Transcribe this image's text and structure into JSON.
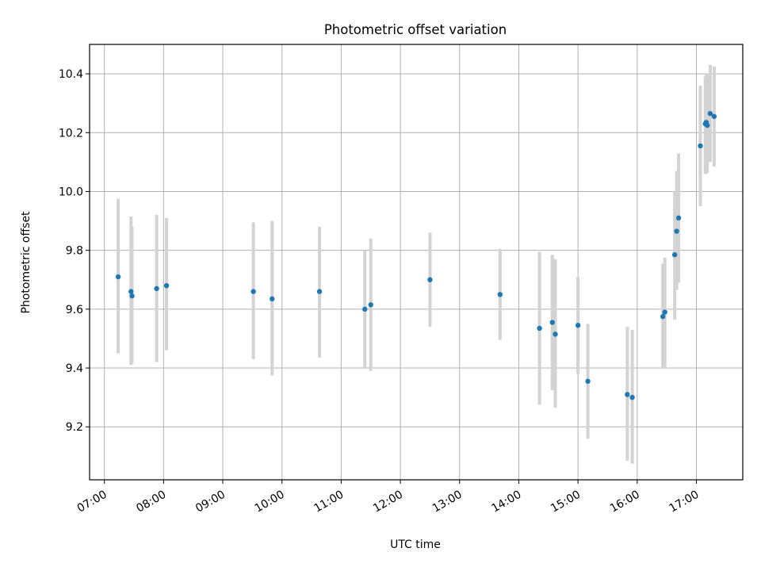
{
  "chart_data": {
    "type": "scatter",
    "title": "Photometric offset variation",
    "xlabel": "UTC time",
    "ylabel": "Photometric offset",
    "x_unit": "time of day (UTC)",
    "xlim": [
      "06:45",
      "17:47"
    ],
    "ylim": [
      9.02,
      10.5
    ],
    "x_ticks": [
      "07:00",
      "08:00",
      "09:00",
      "10:00",
      "11:00",
      "12:00",
      "13:00",
      "14:00",
      "15:00",
      "16:00",
      "17:00"
    ],
    "y_ticks": [
      9.2,
      9.4,
      9.6,
      9.8,
      10.0,
      10.2,
      10.4
    ],
    "grid": true,
    "point_color": "#1f77b4",
    "errorbar_color": "#d3d3d3",
    "series": [
      {
        "points": [
          {
            "x": "07:14",
            "y": 9.71,
            "ylow": 9.45,
            "yhigh": 9.975
          },
          {
            "x": "07:27",
            "y": 9.66,
            "ylow": 9.41,
            "yhigh": 9.915
          },
          {
            "x": "07:28",
            "y": 9.645,
            "ylow": 9.415,
            "yhigh": 9.88
          },
          {
            "x": "07:53",
            "y": 9.67,
            "ylow": 9.42,
            "yhigh": 9.92
          },
          {
            "x": "08:03",
            "y": 9.68,
            "ylow": 9.46,
            "yhigh": 9.91
          },
          {
            "x": "09:31",
            "y": 9.66,
            "ylow": 9.43,
            "yhigh": 9.895
          },
          {
            "x": "09:50",
            "y": 9.635,
            "ylow": 9.375,
            "yhigh": 9.9
          },
          {
            "x": "10:38",
            "y": 9.66,
            "ylow": 9.435,
            "yhigh": 9.88
          },
          {
            "x": "11:24",
            "y": 9.6,
            "ylow": 9.4,
            "yhigh": 9.8
          },
          {
            "x": "11:30",
            "y": 9.615,
            "ylow": 9.39,
            "yhigh": 9.84
          },
          {
            "x": "12:30",
            "y": 9.7,
            "ylow": 9.54,
            "yhigh": 9.86
          },
          {
            "x": "13:41",
            "y": 9.65,
            "ylow": 9.495,
            "yhigh": 9.805
          },
          {
            "x": "14:21",
            "y": 9.535,
            "ylow": 9.275,
            "yhigh": 9.795
          },
          {
            "x": "14:34",
            "y": 9.555,
            "ylow": 9.325,
            "yhigh": 9.785
          },
          {
            "x": "14:37",
            "y": 9.515,
            "ylow": 9.265,
            "yhigh": 9.77
          },
          {
            "x": "15:00",
            "y": 9.545,
            "ylow": 9.38,
            "yhigh": 9.71
          },
          {
            "x": "15:10",
            "y": 9.355,
            "ylow": 9.16,
            "yhigh": 9.55
          },
          {
            "x": "15:50",
            "y": 9.31,
            "ylow": 9.085,
            "yhigh": 9.54
          },
          {
            "x": "15:55",
            "y": 9.3,
            "ylow": 9.075,
            "yhigh": 9.53
          },
          {
            "x": "16:26",
            "y": 9.575,
            "ylow": 9.4,
            "yhigh": 9.755
          },
          {
            "x": "16:28",
            "y": 9.59,
            "ylow": 9.4,
            "yhigh": 9.775
          },
          {
            "x": "16:38",
            "y": 9.785,
            "ylow": 9.565,
            "yhigh": 10.0
          },
          {
            "x": "16:40",
            "y": 9.865,
            "ylow": 9.665,
            "yhigh": 10.07
          },
          {
            "x": "16:42",
            "y": 9.91,
            "ylow": 9.69,
            "yhigh": 10.13
          },
          {
            "x": "17:04",
            "y": 10.155,
            "ylow": 9.95,
            "yhigh": 10.36
          },
          {
            "x": "17:09",
            "y": 10.23,
            "ylow": 10.06,
            "yhigh": 10.39
          },
          {
            "x": "17:10",
            "y": 10.235,
            "ylow": 10.06,
            "yhigh": 10.4
          },
          {
            "x": "17:11",
            "y": 10.225,
            "ylow": 10.065,
            "yhigh": 10.4
          },
          {
            "x": "17:14",
            "y": 10.265,
            "ylow": 10.1,
            "yhigh": 10.43
          },
          {
            "x": "17:18",
            "y": 10.255,
            "ylow": 10.085,
            "yhigh": 10.425
          }
        ]
      }
    ]
  }
}
